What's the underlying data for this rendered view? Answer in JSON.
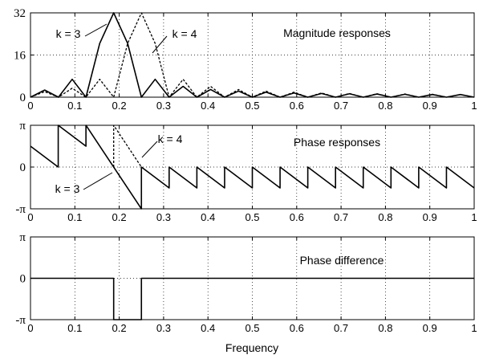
{
  "chart_data": [
    {
      "type": "line",
      "title": "Magnitude responses",
      "xlabel": "",
      "ylabel": "",
      "xlim": [
        0,
        1
      ],
      "ylim": [
        0,
        32
      ],
      "xticks": [
        0,
        0.1,
        0.2,
        0.3,
        0.4,
        0.5,
        0.6,
        0.7,
        0.8,
        0.9,
        1
      ],
      "xtick_labels": [
        "0",
        "0.1",
        "0.2",
        "0.3",
        "0.4",
        "0.5",
        "0.6",
        "0.7",
        "0.8",
        "0.9",
        "1"
      ],
      "yticks": [
        0,
        16,
        32
      ],
      "ytick_labels": [
        "0",
        "16",
        "32"
      ],
      "grid": true,
      "series": [
        {
          "name": "k = 3",
          "style": "solid",
          "x": [
            0,
            0.032,
            0.063,
            0.094,
            0.125,
            0.156,
            0.1875,
            0.219,
            0.25,
            0.281,
            0.3125,
            0.344,
            0.375,
            0.406,
            0.4375,
            0.469,
            0.5,
            0.531,
            0.5625,
            0.594,
            0.625,
            0.656,
            0.6875,
            0.719,
            0.75,
            0.781,
            0.8125,
            0.844,
            0.875,
            0.906,
            0.9375,
            0.969,
            1
          ],
          "values": [
            0,
            2.7,
            0,
            6.8,
            0,
            20.4,
            32,
            20.4,
            0,
            6.8,
            0,
            4.1,
            0,
            2.9,
            0,
            2.3,
            0,
            1.9,
            0,
            1.6,
            0,
            1.4,
            0,
            1.3,
            0,
            1.2,
            0,
            1.1,
            0,
            1.0,
            0,
            1.0,
            0
          ]
        },
        {
          "name": "k = 4",
          "style": "dashed",
          "x": [
            0,
            0.032,
            0.063,
            0.094,
            0.125,
            0.156,
            0.1875,
            0.219,
            0.25,
            0.281,
            0.3125,
            0.344,
            0.375,
            0.406,
            0.4375,
            0.469,
            0.5,
            0.531,
            0.5625,
            0.594,
            0.625,
            0.656,
            0.6875,
            0.719,
            0.75,
            0.781,
            0.8125,
            0.844,
            0.875,
            0.906,
            0.9375,
            0.969,
            1
          ],
          "values": [
            0,
            2.1,
            0,
            3.4,
            0,
            6.8,
            0,
            20.4,
            32,
            20.4,
            0,
            6.8,
            0,
            4.1,
            0,
            2.9,
            0,
            2.3,
            0,
            1.9,
            0,
            1.6,
            0,
            1.4,
            0,
            1.3,
            0,
            1.2,
            0,
            1.1,
            0,
            1.0,
            0
          ]
        }
      ],
      "annotations": [
        {
          "text": "k = 3",
          "x": 0.09,
          "y": 24.5
        },
        {
          "text": "k = 4",
          "x": 0.35,
          "y": 24.5
        }
      ]
    },
    {
      "type": "line",
      "title": "Phase responses",
      "xlabel": "",
      "ylabel": "",
      "xlim": [
        0,
        1
      ],
      "ylim": [
        -3.1416,
        3.1416
      ],
      "xticks": [
        0,
        0.1,
        0.2,
        0.3,
        0.4,
        0.5,
        0.6,
        0.7,
        0.8,
        0.9,
        1
      ],
      "xtick_labels": [
        "0",
        "0.1",
        "0.2",
        "0.3",
        "0.4",
        "0.5",
        "0.6",
        "0.7",
        "0.8",
        "0.9",
        "1"
      ],
      "yticks": [
        -3.1416,
        0,
        3.1416
      ],
      "ytick_labels": [
        "-π",
        "0",
        "π"
      ],
      "grid": true,
      "series": [
        {
          "name": "k = 3",
          "style": "solid",
          "x": [
            0,
            0.0625,
            0.0625,
            0.125,
            0.125,
            0.25,
            0.25,
            0.3125,
            0.3125,
            0.375,
            0.375,
            0.4375,
            0.4375,
            0.5,
            0.5,
            0.5625,
            0.5625,
            0.625,
            0.625,
            0.6875,
            0.6875,
            0.75,
            0.75,
            0.8125,
            0.8125,
            0.875,
            0.875,
            0.9375,
            0.9375,
            1
          ],
          "values": [
            1.571,
            0,
            3.142,
            1.571,
            3.142,
            -3.142,
            0,
            -1.571,
            0,
            -1.571,
            0,
            -1.571,
            0,
            -1.571,
            0,
            -1.571,
            0,
            -1.571,
            0,
            -1.571,
            0,
            -1.571,
            0,
            -1.571,
            0,
            -1.571,
            0,
            -1.571,
            0,
            -1.571
          ]
        },
        {
          "name": "k = 4",
          "style": "dashed",
          "x": [
            0.1875,
            0.1875,
            0.25
          ],
          "values": [
            0,
            3.142,
            0
          ]
        }
      ],
      "annotations": [
        {
          "text": "k = 4",
          "x": 0.3,
          "y": 1.9
        },
        {
          "text": "k = 3",
          "x": 0.1,
          "y": -1.7
        }
      ]
    },
    {
      "type": "line",
      "title": "Phase difference",
      "xlabel": "Frequency",
      "ylabel": "",
      "xlim": [
        0,
        1
      ],
      "ylim": [
        -3.1416,
        3.1416
      ],
      "xticks": [
        0,
        0.1,
        0.2,
        0.3,
        0.4,
        0.5,
        0.6,
        0.7,
        0.8,
        0.9,
        1
      ],
      "xtick_labels": [
        "0",
        "0.1",
        "0.2",
        "0.3",
        "0.4",
        "0.5",
        "0.6",
        "0.7",
        "0.8",
        "0.9",
        "1"
      ],
      "yticks": [
        -3.1416,
        0,
        3.1416
      ],
      "ytick_labels": [
        "-π",
        "0",
        "π"
      ],
      "grid": true,
      "series": [
        {
          "name": "",
          "style": "solid",
          "x": [
            0,
            0.1875,
            0.1875,
            0.25,
            0.25,
            1
          ],
          "values": [
            0,
            0,
            -3.142,
            -3.142,
            0,
            0
          ]
        }
      ],
      "annotations": []
    }
  ]
}
